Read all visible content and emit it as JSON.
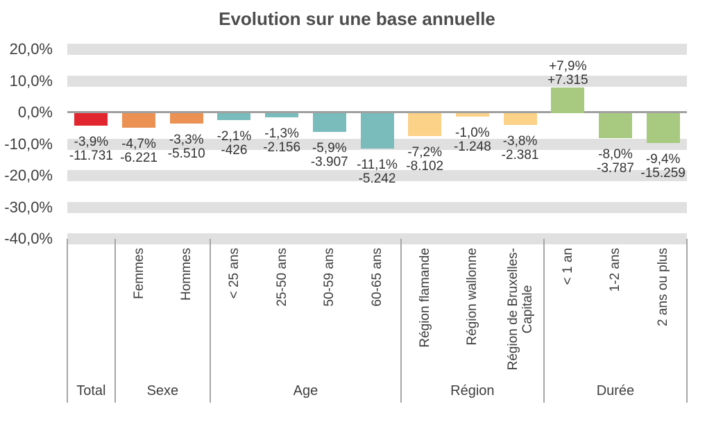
{
  "chart_data": {
    "type": "bar",
    "title": "Evolution sur une base annuelle",
    "xlabel": "",
    "ylabel": "",
    "ylim": [
      -40,
      20
    ],
    "grid": "horizontal-bands",
    "legend": "none",
    "y_ticks": [
      {
        "value": 20,
        "label": "20,0%"
      },
      {
        "value": 10,
        "label": "10,0%"
      },
      {
        "value": 0,
        "label": "0,0%"
      },
      {
        "value": -10,
        "label": "-10,0%"
      },
      {
        "value": -20,
        "label": "-20,0%"
      },
      {
        "value": -30,
        "label": "-30,0%"
      },
      {
        "value": -40,
        "label": "-40,0%"
      }
    ],
    "groups": [
      {
        "label": "Total",
        "color": "#e2262f",
        "bars": [
          {
            "category": "",
            "value_pct": -3.9,
            "pct_label": "-3,9%",
            "abs_label": "-11.731"
          }
        ]
      },
      {
        "label": "Sexe",
        "color": "#ec9154",
        "bars": [
          {
            "category": "Femmes",
            "value_pct": -4.7,
            "pct_label": "-4,7%",
            "abs_label": "-6.221"
          },
          {
            "category": "Hommes",
            "value_pct": -3.3,
            "pct_label": "-3,3%",
            "abs_label": "-5.510"
          }
        ]
      },
      {
        "label": "Age",
        "color": "#7abbbb",
        "bars": [
          {
            "category": "< 25 ans",
            "value_pct": -2.1,
            "pct_label": "-2,1%",
            "abs_label": "-426"
          },
          {
            "category": "25-50 ans",
            "value_pct": -1.3,
            "pct_label": "-1,3%",
            "abs_label": "-2.156"
          },
          {
            "category": "50-59 ans",
            "value_pct": -5.9,
            "pct_label": "-5,9%",
            "abs_label": "-3.907"
          },
          {
            "category": "60-65 ans",
            "value_pct": -11.1,
            "pct_label": "-11,1%",
            "abs_label": "-5.242"
          }
        ]
      },
      {
        "label": "Région",
        "color": "#fbd288",
        "bars": [
          {
            "category": "Région flamande",
            "value_pct": -7.2,
            "pct_label": "-7,2%",
            "abs_label": "-8.102"
          },
          {
            "category": "Région wallonne",
            "value_pct": -1.0,
            "pct_label": "-1,0%",
            "abs_label": "-1.248"
          },
          {
            "category": "Région de Bruxelles-\nCapitale",
            "value_pct": -3.8,
            "pct_label": "-3,8%",
            "abs_label": "-2.381"
          }
        ]
      },
      {
        "label": "Durée",
        "color": "#a7ca80",
        "bars": [
          {
            "category": "< 1 an",
            "value_pct": 7.9,
            "pct_label": "+7,9%",
            "abs_label": "+7.315"
          },
          {
            "category": "1-2 ans",
            "value_pct": -8.0,
            "pct_label": "-8,0%",
            "abs_label": "-3.787"
          },
          {
            "category": "2 ans ou plus",
            "value_pct": -9.4,
            "pct_label": "-9,4%",
            "abs_label": "-15.259"
          }
        ]
      }
    ],
    "colors": {
      "grid_band": "#e0e0e0",
      "zero_line": "#a0a0a0",
      "group_separator": "#a6a6a6",
      "text": "#3e3e3e",
      "title": "#4d4d4d"
    }
  }
}
